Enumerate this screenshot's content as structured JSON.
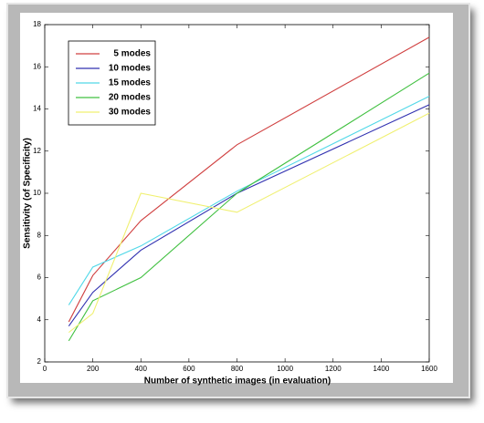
{
  "chart_data": {
    "type": "line",
    "x_label": "Number of synthetic images (in evaluation)",
    "y_label": "Sensitivity (of Specificity)",
    "x": [
      100,
      200,
      400,
      800,
      1600
    ],
    "series": [
      {
        "name": "5 modes",
        "color": "#d04040",
        "values": [
          3.9,
          6.1,
          8.7,
          12.3,
          17.4
        ]
      },
      {
        "name": "10 modes",
        "color": "#3030b0",
        "values": [
          3.7,
          5.3,
          7.3,
          10.0,
          14.2
        ]
      },
      {
        "name": "15 modes",
        "color": "#50d8e8",
        "values": [
          4.7,
          6.5,
          7.5,
          10.1,
          14.6
        ]
      },
      {
        "name": "20 modes",
        "color": "#40c040",
        "values": [
          3.0,
          4.9,
          6.0,
          10.0,
          15.7
        ]
      },
      {
        "name": "30 modes",
        "color": "#f0f070",
        "values": [
          3.4,
          4.3,
          10.0,
          9.1,
          13.8
        ]
      }
    ],
    "xlim": [
      0,
      1600
    ],
    "ylim": [
      2,
      18
    ],
    "xticks": [
      0,
      200,
      400,
      600,
      800,
      1000,
      1200,
      1400,
      1600
    ],
    "yticks": [
      2,
      4,
      6,
      8,
      10,
      12,
      14,
      16,
      18
    ],
    "grid": false,
    "legend_position": "upper-left"
  }
}
